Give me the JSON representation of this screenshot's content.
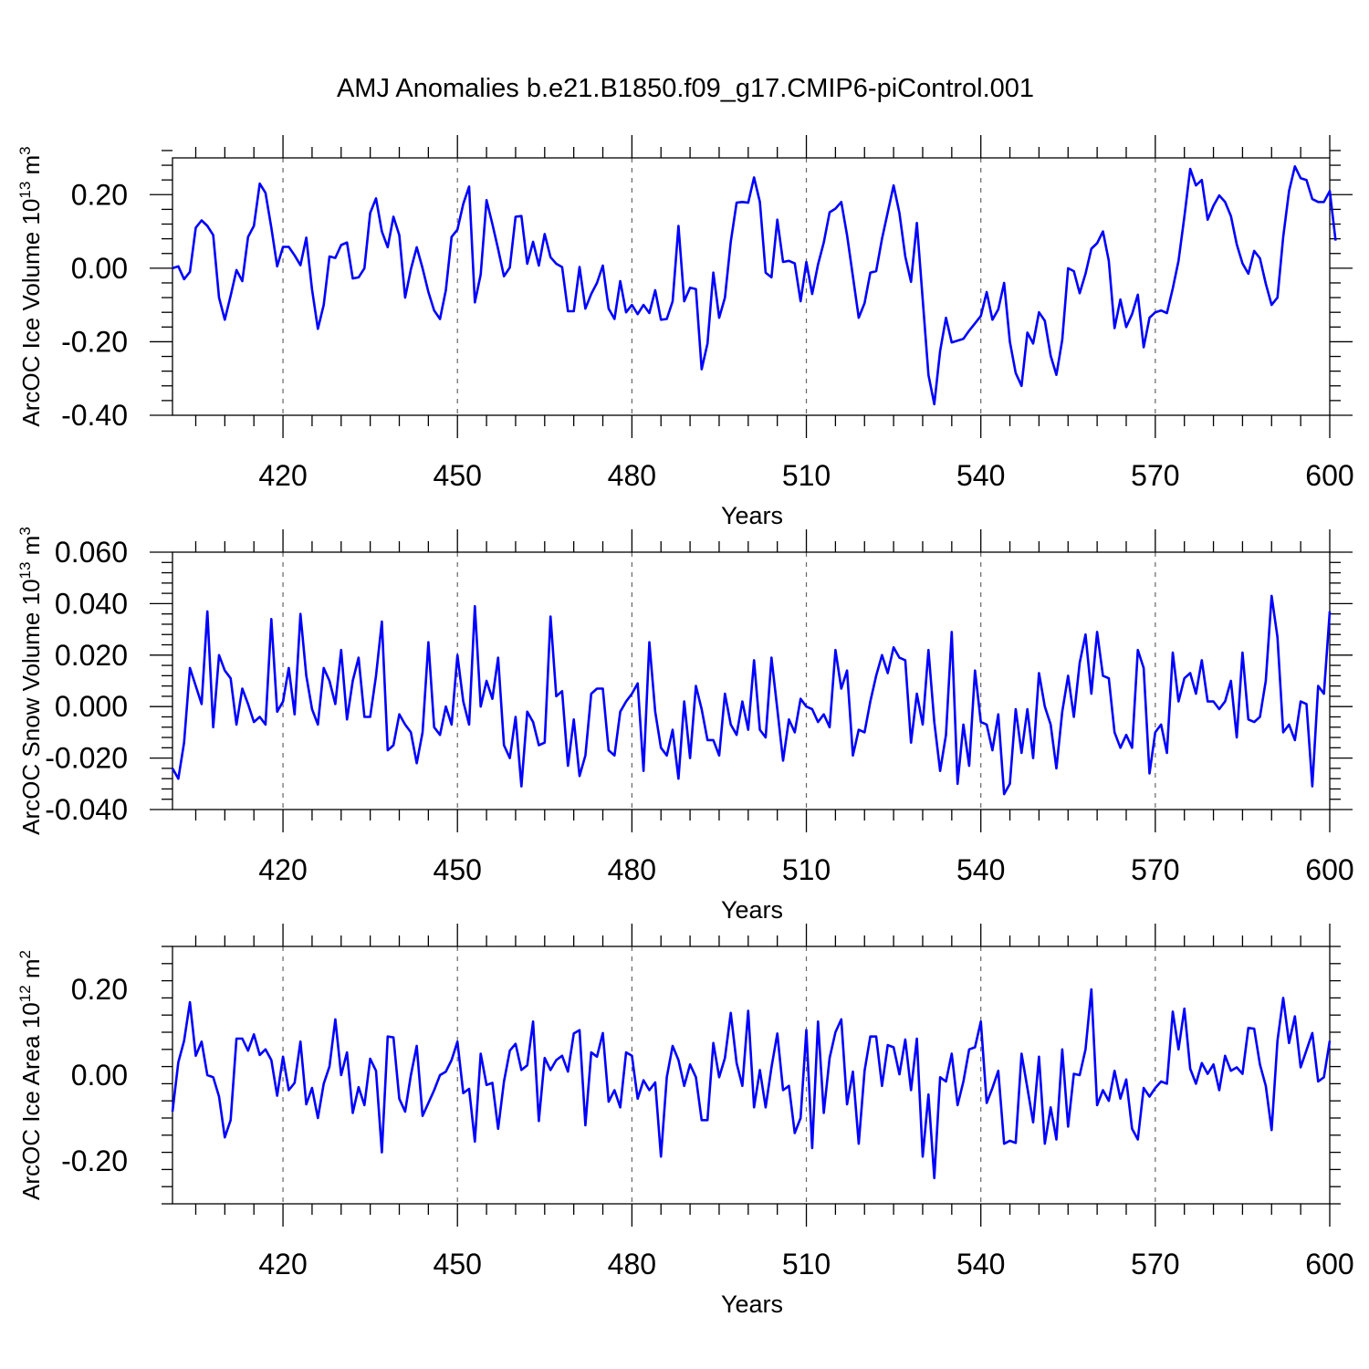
{
  "title": "AMJ Anomalies b.e21.B1850.f09_g17.CMIP6-piControl.001",
  "colors": {
    "line": "#0000ff",
    "grid": "#666666",
    "axis": "#000000"
  },
  "chart_data": [
    {
      "type": "line",
      "ylabel_prefix": "ArcOC Ice Volume 10",
      "ylabel_exp": "13",
      "ylabel_unit": " m",
      "ylabel_unit_exp": "3",
      "xlabel": "Years",
      "xlim": [
        401,
        600
      ],
      "ylim": [
        -0.4,
        0.3
      ],
      "x_ticks": [
        420,
        450,
        480,
        510,
        540,
        570,
        600
      ],
      "x_tick_labels": [
        "420",
        "450",
        "480",
        "510",
        "540",
        "570",
        "600"
      ],
      "y_ticks": [
        -0.4,
        -0.2,
        0.0,
        0.2
      ],
      "y_tick_labels": [
        "-0.40",
        "-0.20",
        "0.00",
        "0.20"
      ],
      "grid_x": true,
      "x_start": 401,
      "series": [
        {
          "values": [
            0.0,
            0.005,
            -0.03,
            -0.01,
            0.11,
            0.13,
            0.115,
            0.09,
            -0.08,
            -0.14,
            -0.075,
            -0.005,
            -0.035,
            0.085,
            0.115,
            0.23,
            0.205,
            0.11,
            0.005,
            0.058,
            0.058,
            0.035,
            0.008,
            0.083,
            -0.058,
            -0.165,
            -0.1,
            0.032,
            0.028,
            0.063,
            0.07,
            -0.028,
            -0.025,
            0.0,
            0.15,
            0.19,
            0.1,
            0.057,
            0.14,
            0.09,
            -0.08,
            -0.003,
            0.057,
            0.0,
            -0.065,
            -0.115,
            -0.138,
            -0.06,
            0.085,
            0.105,
            0.175,
            0.222,
            -0.093,
            -0.017,
            0.185,
            0.12,
            0.052,
            -0.022,
            0.002,
            0.14,
            0.142,
            0.012,
            0.072,
            0.007,
            0.093,
            0.03,
            0.012,
            0.003,
            -0.117,
            -0.117,
            0.003,
            -0.11,
            -0.07,
            -0.04,
            0.007,
            -0.11,
            -0.138,
            -0.035,
            -0.12,
            -0.1,
            -0.125,
            -0.1,
            -0.122,
            -0.06,
            -0.14,
            -0.138,
            -0.09,
            0.115,
            -0.09,
            -0.053,
            -0.057,
            -0.275,
            -0.205,
            -0.012,
            -0.135,
            -0.08,
            0.072,
            0.178,
            0.18,
            0.178,
            0.247,
            0.18,
            -0.012,
            -0.025,
            0.132,
            0.017,
            0.02,
            0.013,
            -0.09,
            0.017,
            -0.07,
            0.01,
            0.07,
            0.152,
            0.162,
            0.18,
            0.09,
            -0.022,
            -0.135,
            -0.095,
            -0.012,
            -0.008,
            0.08,
            0.152,
            0.225,
            0.15,
            0.032,
            -0.037,
            0.123,
            -0.085,
            -0.29,
            -0.37,
            -0.225,
            -0.135,
            -0.202,
            -0.197,
            -0.192,
            -0.17,
            -0.15,
            -0.13,
            -0.065,
            -0.14,
            -0.112,
            -0.04,
            -0.2,
            -0.285,
            -0.32,
            -0.175,
            -0.205,
            -0.12,
            -0.143,
            -0.238,
            -0.29,
            -0.195,
            0.0,
            -0.008,
            -0.068,
            -0.015,
            0.053,
            0.068,
            0.1,
            0.02,
            -0.163,
            -0.085,
            -0.16,
            -0.125,
            -0.072,
            -0.215,
            -0.135,
            -0.12,
            -0.115,
            -0.122,
            -0.055,
            0.02,
            0.14,
            0.27,
            0.225,
            0.24,
            0.132,
            0.17,
            0.198,
            0.18,
            0.142,
            0.065,
            0.013,
            -0.015,
            0.047,
            0.027,
            -0.042,
            -0.1,
            -0.08,
            0.085,
            0.21,
            0.277,
            0.245,
            0.24,
            0.188,
            0.18,
            0.18,
            0.21,
            0.075
          ]
        }
      ]
    },
    {
      "type": "line",
      "ylabel_prefix": "ArcOC Snow Volume 10",
      "ylabel_exp": "13",
      "ylabel_unit": " m",
      "ylabel_unit_exp": "3",
      "xlabel": "Years",
      "xlim": [
        401,
        600
      ],
      "ylim": [
        -0.04,
        0.06
      ],
      "x_ticks": [
        420,
        450,
        480,
        510,
        540,
        570,
        600
      ],
      "x_tick_labels": [
        "420",
        "450",
        "480",
        "510",
        "540",
        "570",
        "600"
      ],
      "y_ticks": [
        -0.04,
        -0.02,
        0.0,
        0.02,
        0.04,
        0.06
      ],
      "y_tick_labels": [
        "-0.040",
        "-0.020",
        "0.000",
        "0.020",
        "0.040",
        "0.060"
      ],
      "grid_x": true,
      "x_start": 401,
      "series": [
        {
          "values": [
            -0.024,
            -0.028,
            -0.014,
            0.015,
            0.008,
            0.001,
            0.037,
            -0.008,
            0.02,
            0.014,
            0.011,
            -0.007,
            0.007,
            0.001,
            -0.006,
            -0.004,
            -0.007,
            0.034,
            -0.002,
            0.002,
            0.015,
            -0.003,
            0.036,
            0.012,
            -0.001,
            -0.007,
            0.015,
            0.01,
            0.001,
            0.022,
            -0.005,
            0.01,
            0.019,
            -0.004,
            -0.004,
            0.012,
            0.033,
            -0.017,
            -0.015,
            -0.003,
            -0.007,
            -0.01,
            -0.022,
            -0.01,
            0.025,
            -0.008,
            -0.011,
            0.0,
            -0.007,
            0.02,
            0.002,
            -0.007,
            0.039,
            0.0,
            0.01,
            0.003,
            0.019,
            -0.015,
            -0.02,
            -0.004,
            -0.031,
            -0.002,
            -0.006,
            -0.015,
            -0.014,
            0.035,
            0.004,
            0.006,
            -0.023,
            -0.005,
            -0.027,
            -0.019,
            0.005,
            0.007,
            0.007,
            -0.017,
            -0.019,
            -0.002,
            0.002,
            0.005,
            0.009,
            -0.025,
            0.025,
            -0.002,
            -0.016,
            -0.019,
            -0.009,
            -0.028,
            0.002,
            -0.02,
            0.008,
            -0.001,
            -0.013,
            -0.013,
            -0.019,
            0.005,
            -0.007,
            -0.011,
            0.002,
            -0.009,
            0.018,
            -0.009,
            -0.012,
            0.019,
            -0.001,
            -0.021,
            -0.005,
            -0.01,
            0.003,
            0.0,
            -0.001,
            -0.006,
            -0.003,
            -0.008,
            0.022,
            0.007,
            0.014,
            -0.019,
            -0.009,
            -0.01,
            0.002,
            0.012,
            0.02,
            0.013,
            0.023,
            0.019,
            0.018,
            -0.014,
            0.005,
            -0.007,
            0.022,
            -0.006,
            -0.025,
            -0.011,
            0.029,
            -0.03,
            -0.007,
            -0.023,
            0.014,
            -0.006,
            -0.007,
            -0.017,
            -0.003,
            -0.034,
            -0.03,
            -0.001,
            -0.018,
            -0.001,
            -0.02,
            0.013,
            0.0,
            -0.007,
            -0.024,
            -0.002,
            0.012,
            -0.004,
            0.017,
            0.028,
            0.005,
            0.029,
            0.012,
            0.011,
            -0.01,
            -0.016,
            -0.011,
            -0.016,
            0.022,
            0.015,
            -0.026,
            -0.01,
            -0.007,
            -0.018,
            0.021,
            0.002,
            0.011,
            0.013,
            0.005,
            0.018,
            0.002,
            0.002,
            -0.001,
            0.002,
            0.01,
            -0.012,
            0.021,
            -0.005,
            -0.006,
            -0.004,
            0.01,
            0.043,
            0.027,
            -0.01,
            -0.007,
            -0.013,
            0.002,
            0.001,
            -0.031,
            0.008,
            0.005,
            0.037
          ]
        }
      ]
    },
    {
      "type": "line",
      "ylabel_prefix": "ArcOC Ice Area 10",
      "ylabel_exp": "12",
      "ylabel_unit": " m",
      "ylabel_unit_exp": "2",
      "xlabel": "Years",
      "xlim": [
        401,
        600
      ],
      "ylim": [
        -0.3,
        0.3
      ],
      "x_ticks": [
        420,
        450,
        480,
        510,
        540,
        570,
        600
      ],
      "x_tick_labels": [
        "420",
        "450",
        "480",
        "510",
        "540",
        "570",
        "600"
      ],
      "y_ticks": [
        -0.2,
        0.0,
        0.2
      ],
      "y_tick_labels": [
        "-0.20",
        "0.00",
        "0.20"
      ],
      "grid_x": true,
      "x_start": 401,
      "series": [
        {
          "values": [
            -0.085,
            0.03,
            0.08,
            0.17,
            0.045,
            0.078,
            0.0,
            -0.005,
            -0.05,
            -0.145,
            -0.105,
            0.085,
            0.085,
            0.057,
            0.095,
            0.047,
            0.06,
            0.035,
            -0.048,
            0.043,
            -0.035,
            -0.018,
            0.078,
            -0.068,
            -0.03,
            -0.1,
            -0.02,
            0.02,
            0.13,
            0.0,
            0.053,
            -0.088,
            -0.028,
            -0.07,
            0.038,
            0.01,
            -0.18,
            0.09,
            0.088,
            -0.055,
            -0.085,
            0.0,
            0.068,
            -0.095,
            -0.065,
            -0.035,
            0.0,
            0.008,
            0.035,
            0.078,
            -0.042,
            -0.032,
            -0.155,
            0.05,
            -0.023,
            -0.018,
            -0.125,
            -0.015,
            0.057,
            0.073,
            0.012,
            0.023,
            0.125,
            -0.107,
            0.04,
            0.012,
            0.035,
            0.045,
            0.008,
            0.097,
            0.105,
            -0.117,
            0.053,
            0.043,
            0.098,
            -0.062,
            -0.035,
            -0.075,
            0.053,
            0.045,
            -0.055,
            -0.012,
            -0.035,
            -0.017,
            -0.19,
            -0.005,
            0.068,
            0.035,
            -0.025,
            0.025,
            -0.005,
            -0.105,
            -0.105,
            0.075,
            -0.005,
            0.04,
            0.145,
            0.028,
            -0.025,
            0.15,
            -0.075,
            0.012,
            -0.075,
            0.018,
            0.097,
            -0.035,
            -0.025,
            -0.135,
            -0.1,
            0.105,
            -0.17,
            0.125,
            -0.088,
            0.04,
            0.1,
            0.13,
            -0.068,
            0.008,
            -0.16,
            0.01,
            0.09,
            0.09,
            -0.025,
            0.07,
            0.065,
            0.002,
            0.083,
            -0.035,
            0.085,
            -0.19,
            -0.045,
            -0.24,
            -0.005,
            -0.015,
            0.05,
            -0.07,
            -0.015,
            0.06,
            0.065,
            0.125,
            -0.065,
            -0.03,
            0.01,
            -0.16,
            -0.153,
            -0.158,
            0.05,
            -0.03,
            -0.11,
            0.043,
            -0.16,
            -0.075,
            -0.15,
            0.06,
            -0.12,
            0.003,
            0.0,
            0.06,
            0.2,
            -0.07,
            -0.035,
            -0.06,
            0.01,
            -0.055,
            -0.01,
            -0.125,
            -0.15,
            -0.03,
            -0.05,
            -0.03,
            -0.015,
            -0.02,
            0.148,
            0.06,
            0.155,
            0.015,
            -0.02,
            0.028,
            0.003,
            0.025,
            -0.035,
            0.045,
            0.01,
            0.018,
            0.003,
            0.11,
            0.108,
            0.025,
            -0.025,
            -0.128,
            0.08,
            0.18,
            0.075,
            0.137,
            0.018,
            0.058,
            0.098,
            -0.015,
            -0.005,
            0.08
          ]
        }
      ]
    }
  ]
}
